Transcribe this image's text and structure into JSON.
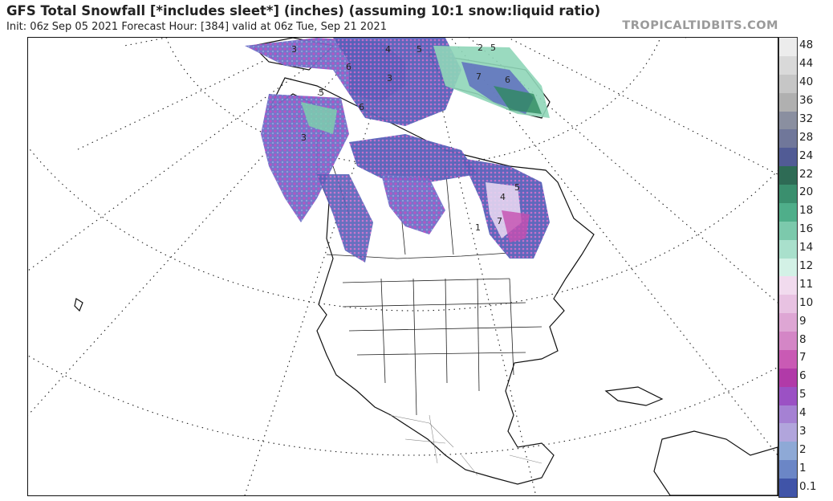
{
  "header": {
    "title": "GFS Total Snowfall [*includes sleet*] (inches) (assuming 10:1 snow:liquid ratio)",
    "subtitle": "Init: 06z Sep 05 2021   Forecast Hour: [384]   valid at 06z Tue, Sep 21 2021",
    "brand": "TROPICALTIDBITS.COM"
  },
  "colorbar": {
    "labels": [
      "48",
      "44",
      "40",
      "36",
      "32",
      "28",
      "24",
      "22",
      "20",
      "18",
      "16",
      "14",
      "12",
      "11",
      "10",
      "9",
      "8",
      "7",
      "6",
      "5",
      "4",
      "3",
      "2",
      "1",
      "0.1"
    ],
    "colors": [
      "#ececec",
      "#d9d9d9",
      "#c6c6c6",
      "#b0b0b0",
      "#8a8fa0",
      "#70779a",
      "#515b95",
      "#2e6b55",
      "#3a8f6e",
      "#4fae8a",
      "#7cc9ac",
      "#a9e0cc",
      "#d3f1e6",
      "#f1dbee",
      "#e8c2e2",
      "#dea6d4",
      "#d486c6",
      "#c95ab4",
      "#b13aa8",
      "#9b51c4",
      "#a581d3",
      "#b1a5dc",
      "#8ea9d6",
      "#6b86c6",
      "#4054a8"
    ]
  },
  "map": {
    "snow_numbers": [
      "3",
      "4",
      "5",
      "3",
      "6",
      "6",
      "5",
      "2",
      "7",
      "5",
      "3",
      "6",
      "5",
      "7",
      "1",
      "4"
    ]
  }
}
